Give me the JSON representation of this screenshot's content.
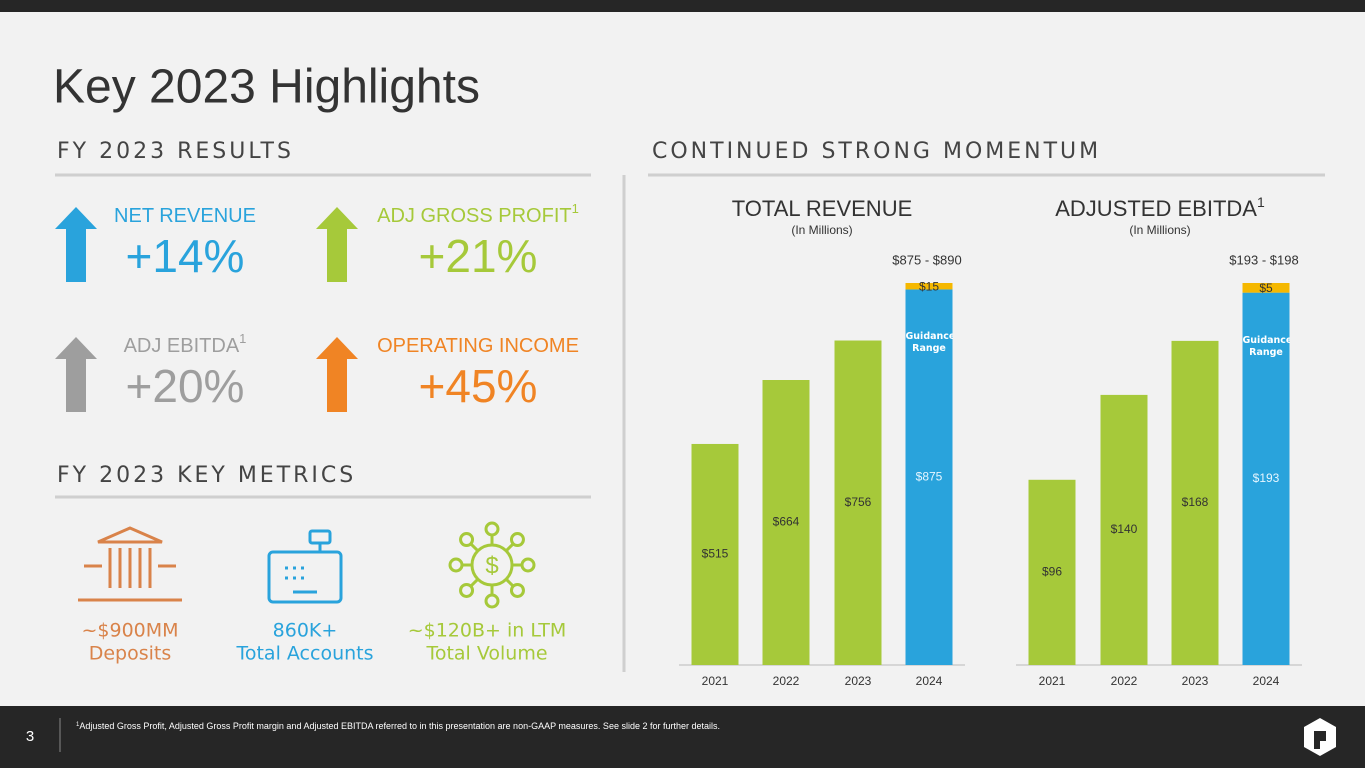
{
  "title": "Key 2023 Highlights",
  "sections": {
    "results": "FY 2023 RESULTS",
    "momentum": "CONTINUED STRONG MOMENTUM",
    "metrics": "FY 2023 KEY METRICS"
  },
  "highlights": [
    {
      "label": "NET REVENUE",
      "value": "+14%",
      "color": "#29a3dc"
    },
    {
      "label": "ADJ GROSS PROFIT",
      "sup": "1",
      "value": "+21%",
      "color": "#a6c93a"
    },
    {
      "label": "ADJ EBITDA",
      "sup": "1",
      "value": "+20%",
      "color": "#9e9e9e"
    },
    {
      "label": "OPERATING INCOME",
      "value": "+45%",
      "color": "#f08424"
    }
  ],
  "metrics": [
    {
      "value": "~$900MM",
      "label": "Deposits",
      "color": "#d9834a"
    },
    {
      "value": "860K+",
      "label": "Total Accounts",
      "color": "#29a3dc"
    },
    {
      "value": "~$120B+ in LTM",
      "label": "Total Volume",
      "color": "#a6c93a"
    }
  ],
  "chart_data": [
    {
      "type": "bar",
      "stacked": true,
      "title": "TOTAL REVENUE",
      "subtitle": "(In Millions)",
      "categories": [
        "2021",
        "2022",
        "2023",
        "2024"
      ],
      "series": [
        {
          "values": [
            515,
            664,
            756,
            875
          ],
          "value_labels": [
            "$515",
            "$664",
            "$756",
            "$875"
          ],
          "colors": [
            "#a6c93a",
            "#a6c93a",
            "#a6c93a",
            "#29a3dc"
          ]
        },
        {
          "values": [
            null,
            null,
            null,
            15
          ],
          "value_labels": [
            null,
            null,
            null,
            "$15"
          ],
          "color": "#f5b800"
        }
      ],
      "annotation": "Guidance Range",
      "range_label": "$875 - $890"
    },
    {
      "type": "bar",
      "stacked": true,
      "title": "ADJUSTED EBITDA",
      "title_sup": "1",
      "subtitle": "(In Millions)",
      "categories": [
        "2021",
        "2022",
        "2023",
        "2024"
      ],
      "series": [
        {
          "values": [
            96,
            140,
            168,
            193
          ],
          "value_labels": [
            "$96",
            "$140",
            "$168",
            "$193"
          ],
          "colors": [
            "#a6c93a",
            "#a6c93a",
            "#a6c93a",
            "#29a3dc"
          ]
        },
        {
          "values": [
            null,
            null,
            null,
            5
          ],
          "value_labels": [
            null,
            null,
            null,
            "$5"
          ],
          "color": "#f5b800"
        }
      ],
      "annotation": "Guidance Range",
      "range_label": "$193 - $198"
    }
  ],
  "footer": {
    "page": "3",
    "footnote_marker": "1",
    "footnote": "Adjusted Gross Profit, Adjusted Gross Profit margin and Adjusted EBITDA referred to in this presentation are non-GAAP measures. See slide 2 for further details."
  }
}
